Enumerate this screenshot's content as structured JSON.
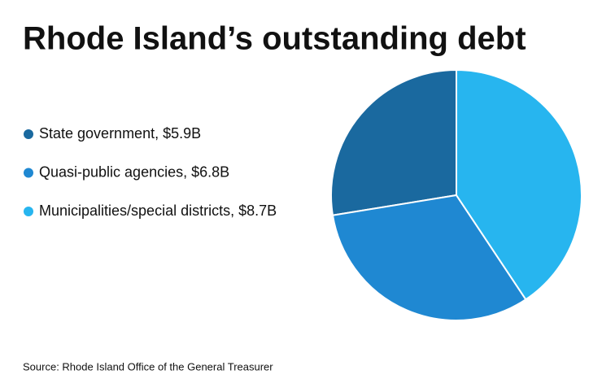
{
  "chart_data": {
    "type": "pie",
    "title": "Rhode Island’s outstanding debt",
    "categories": [
      "State government, $5.9B",
      "Quasi-public agencies, $6.8B",
      "Municipalities/special districts, $8.7B"
    ],
    "values": [
      5.9,
      6.8,
      8.7
    ],
    "colors": [
      "#1a699f",
      "#1f88d2",
      "#27b5ef"
    ],
    "source": "Source: Rhode Island Office of the General Treasurer"
  }
}
